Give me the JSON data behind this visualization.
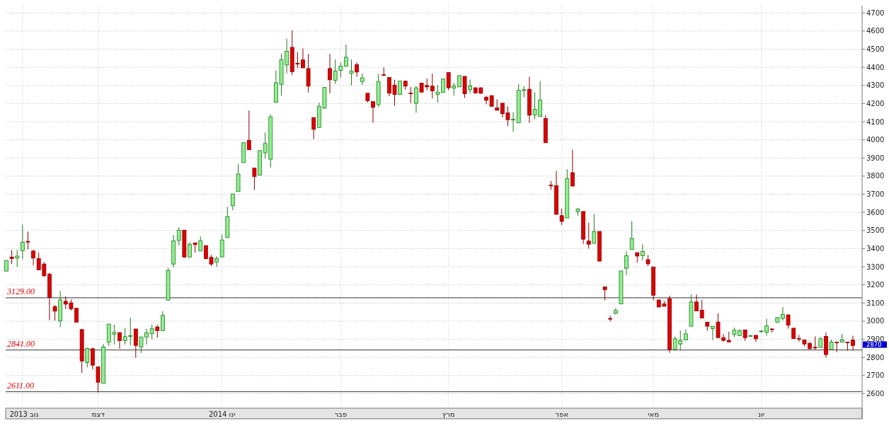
{
  "chart_data": {
    "type": "candlestick",
    "categories": [
      null,
      null,
      null,
      "נוב 2013",
      null,
      null,
      null,
      null,
      null,
      null,
      null,
      null,
      null,
      null,
      null,
      null,
      null,
      "דצמ",
      null,
      null,
      null,
      null,
      null,
      null,
      null,
      null,
      null,
      null,
      null,
      null,
      null,
      null,
      null,
      null,
      null,
      null,
      null,
      null,
      null,
      null,
      "ינו 2014",
      null,
      null,
      null,
      null,
      null,
      null,
      null,
      null,
      null,
      null,
      null,
      null,
      null,
      null,
      null,
      null,
      null,
      null,
      null,
      null,
      null,
      "פבר",
      null,
      null,
      null,
      null,
      null,
      null,
      null,
      null,
      null,
      null,
      null,
      null,
      null,
      null,
      null,
      null,
      null,
      null,
      null,
      "מרץ",
      null,
      null,
      null,
      null,
      null,
      null,
      null,
      null,
      null,
      null,
      null,
      null,
      null,
      null,
      null,
      null,
      null,
      null,
      null,
      null,
      "אפר",
      null,
      null,
      null,
      null,
      null,
      null,
      null,
      null,
      null,
      null,
      null,
      null,
      null,
      null,
      null,
      null,
      "מאי",
      null,
      null,
      null,
      null,
      null,
      null,
      null,
      null,
      null,
      null,
      null,
      null,
      null,
      null,
      null,
      null,
      null,
      null,
      null,
      "יונ",
      null,
      null,
      null,
      null,
      null,
      null,
      null,
      null,
      null,
      null,
      null,
      null,
      null,
      null,
      null,
      null,
      null
    ],
    "ohlc": [
      [
        3276,
        3335,
        3276,
        3335
      ],
      [
        3354,
        3393,
        3315,
        3345
      ],
      [
        3348,
        3393,
        3300,
        3359
      ],
      [
        3389,
        3533,
        3341,
        3436
      ],
      [
        3440,
        3494,
        3396,
        3436
      ],
      [
        3387,
        3393,
        3309,
        3348
      ],
      [
        3345,
        3378,
        3283,
        3283
      ],
      [
        3315,
        3326,
        3244,
        3250
      ],
      [
        3259,
        3266,
        3006,
        3131
      ],
      [
        3081,
        3088,
        3003,
        3055
      ],
      [
        3001,
        3166,
        2967,
        3118
      ],
      [
        3110,
        3137,
        3066,
        3094
      ],
      [
        3101,
        3120,
        3058,
        3068
      ],
      [
        3071,
        3071,
        2994,
        2994
      ],
      [
        2954,
        2954,
        2714,
        2780
      ],
      [
        2772,
        2854,
        2746,
        2850
      ],
      [
        2848,
        2854,
        2733,
        2757
      ],
      [
        2748,
        2748,
        2607,
        2663
      ],
      [
        2657,
        2874,
        2657,
        2858
      ],
      [
        2884,
        2984,
        2863,
        2984
      ],
      [
        2928,
        2981,
        2871,
        2938
      ],
      [
        2937,
        2937,
        2848,
        2893
      ],
      [
        2893,
        2962,
        2871,
        2915
      ],
      [
        2915,
        3019,
        2867,
        2920
      ],
      [
        2957,
        2957,
        2798,
        2866
      ],
      [
        2858,
        2913,
        2824,
        2913
      ],
      [
        2913,
        2958,
        2871,
        2936
      ],
      [
        2932,
        2980,
        2900,
        2958
      ],
      [
        2968,
        2980,
        2909,
        2948
      ],
      [
        2948,
        3055,
        2948,
        3032
      ],
      [
        3116,
        3293,
        3116,
        3280
      ],
      [
        3315,
        3475,
        3296,
        3443
      ],
      [
        3445,
        3517,
        3417,
        3502
      ],
      [
        3502,
        3502,
        3348,
        3354
      ],
      [
        3354,
        3435,
        3354,
        3424
      ],
      [
        3432,
        3432,
        3378,
        3422
      ],
      [
        3387,
        3467,
        3387,
        3444
      ],
      [
        3417,
        3417,
        3339,
        3345
      ],
      [
        3352,
        3365,
        3305,
        3315
      ],
      [
        3326,
        3358,
        3300,
        3346
      ],
      [
        3354,
        3478,
        3354,
        3448
      ],
      [
        3461,
        3630,
        3461,
        3577
      ],
      [
        3637,
        3702,
        3611,
        3702
      ],
      [
        3715,
        3867,
        3715,
        3811
      ],
      [
        3874,
        3984,
        3874,
        3984
      ],
      [
        3997,
        4162,
        3945,
        3945
      ],
      [
        3845,
        3845,
        3724,
        3798
      ],
      [
        3805,
        3941,
        3805,
        3941
      ],
      [
        3929,
        4040,
        3897,
        3980
      ],
      [
        3893,
        4140,
        3848,
        4127
      ],
      [
        4207,
        4383,
        4207,
        4315
      ],
      [
        4306,
        4474,
        4244,
        4443
      ],
      [
        4413,
        4558,
        4367,
        4488
      ],
      [
        4510,
        4604,
        4357,
        4376
      ],
      [
        4422,
        4484,
        4396,
        4418
      ],
      [
        4441,
        4504,
        4397,
        4397
      ],
      [
        4393,
        4474,
        4261,
        4296
      ],
      [
        4123,
        4123,
        4004,
        4058
      ],
      [
        4068,
        4205,
        4068,
        4185
      ],
      [
        4175,
        4289,
        4170,
        4289
      ],
      [
        4393,
        4474,
        4257,
        4331
      ],
      [
        4328,
        4443,
        4309,
        4380
      ],
      [
        4383,
        4426,
        4344,
        4406
      ],
      [
        4406,
        4526,
        4406,
        4456
      ],
      [
        4367,
        4443,
        4300,
        4380
      ],
      [
        4415,
        4428,
        4348,
        4374
      ],
      [
        4322,
        4367,
        4302,
        4342
      ],
      [
        4257,
        4257,
        4207,
        4215
      ],
      [
        4211,
        4211,
        4094,
        4179
      ],
      [
        4194,
        4363,
        4181,
        4322
      ],
      [
        4360,
        4400,
        4352,
        4356
      ],
      [
        4344,
        4344,
        4241,
        4257
      ],
      [
        4302,
        4331,
        4188,
        4250
      ],
      [
        4250,
        4324,
        4250,
        4324
      ],
      [
        4324,
        4324,
        4276,
        4296
      ],
      [
        4258,
        4292,
        4202,
        4255
      ],
      [
        4202,
        4296,
        4149,
        4287
      ],
      [
        4313,
        4313,
        4263,
        4263
      ],
      [
        4300,
        4337,
        4272,
        4292
      ],
      [
        4296,
        4365,
        4228,
        4270
      ],
      [
        4250,
        4302,
        4205,
        4263
      ],
      [
        4261,
        4337,
        4261,
        4337
      ],
      [
        4371,
        4371,
        4274,
        4287
      ],
      [
        4285,
        4315,
        4244,
        4298
      ],
      [
        4292,
        4354,
        4292,
        4354
      ],
      [
        4350,
        4350,
        4231,
        4254
      ],
      [
        4276,
        4332,
        4257,
        4298
      ],
      [
        4287,
        4290,
        4254,
        4259
      ],
      [
        4287,
        4290,
        4254,
        4257
      ],
      [
        4235,
        4244,
        4196,
        4218
      ],
      [
        4244,
        4244,
        4185,
        4185
      ],
      [
        4176,
        4224,
        4163,
        4163
      ],
      [
        4202,
        4202,
        4123,
        4144
      ],
      [
        4149,
        4185,
        4075,
        4111
      ],
      [
        4111,
        4153,
        4045,
        4113
      ],
      [
        4094,
        4306,
        4094,
        4274
      ],
      [
        4274,
        4296,
        4235,
        4276
      ],
      [
        4279,
        4348,
        4094,
        4136
      ],
      [
        4137,
        4263,
        4114,
        4168
      ],
      [
        4129,
        4322,
        4129,
        4220
      ],
      [
        4118,
        4137,
        3984,
        3984
      ],
      [
        3750,
        3773,
        3725,
        3747
      ],
      [
        3747,
        3829,
        3589,
        3589
      ],
      [
        3582,
        3621,
        3530,
        3550
      ],
      [
        3569,
        3838,
        3569,
        3786
      ],
      [
        3819,
        3946,
        3745,
        3745
      ],
      [
        3604,
        3625,
        3582,
        3618
      ],
      [
        3605,
        3605,
        3426,
        3452
      ],
      [
        3442,
        3543,
        3400,
        3424
      ],
      [
        3429,
        3591,
        3429,
        3495
      ],
      [
        3495,
        3495,
        3331,
        3331
      ],
      [
        3189,
        3189,
        3115,
        3173
      ],
      [
        3015,
        3030,
        2998,
        3013
      ],
      [
        3043,
        3072,
        3037,
        3059
      ],
      [
        3095,
        3277,
        3095,
        3277
      ],
      [
        3292,
        3387,
        3253,
        3361
      ],
      [
        3396,
        3552,
        3396,
        3456
      ],
      [
        3378,
        3378,
        3322,
        3359
      ],
      [
        3361,
        3424,
        3335,
        3385
      ],
      [
        3339,
        3365,
        3305,
        3316
      ],
      [
        3299,
        3299,
        3115,
        3143
      ],
      [
        3117,
        3117,
        3078,
        3078
      ],
      [
        3095,
        3111,
        3082,
        3082
      ],
      [
        3124,
        3141,
        2825,
        2844
      ],
      [
        2844,
        2916,
        2838,
        2903
      ],
      [
        2874,
        2950,
        2838,
        2894
      ],
      [
        2896,
        2955,
        2896,
        2930
      ],
      [
        2972,
        3147,
        2972,
        3106
      ],
      [
        3106,
        3147,
        3056,
        3056
      ],
      [
        3060,
        3117,
        3017,
        3017
      ],
      [
        2994,
        2994,
        2946,
        2972
      ],
      [
        2959,
        2972,
        2896,
        2972
      ],
      [
        2995,
        3043,
        2909,
        2909
      ],
      [
        2909,
        2929,
        2887,
        2894
      ],
      [
        2894,
        2942,
        2885,
        2885
      ],
      [
        2926,
        2965,
        2913,
        2950
      ],
      [
        2920,
        2955,
        2920,
        2948
      ],
      [
        2952,
        2952,
        2891,
        2909
      ],
      [
        2918,
        2925,
        2914,
        2920
      ],
      [
        2922,
        2922,
        2885,
        2903
      ],
      [
        2944,
        2950,
        2936,
        2946
      ],
      [
        2939,
        3013,
        2920,
        2974
      ],
      [
        2957,
        2962,
        2937,
        2954
      ],
      [
        2994,
        3020,
        2994,
        3020
      ],
      [
        3015,
        3078,
        3004,
        3037
      ],
      [
        3034,
        3040,
        2959,
        2978
      ],
      [
        2961,
        2965,
        2900,
        2904
      ],
      [
        2904,
        2924,
        2887,
        2902
      ],
      [
        2896,
        2896,
        2861,
        2874
      ],
      [
        2877,
        2887,
        2846,
        2848
      ],
      [
        2856,
        2916,
        2842,
        2855
      ],
      [
        2855,
        2913,
        2855,
        2903
      ],
      [
        2916,
        2937,
        2799,
        2816
      ],
      [
        2844,
        2898,
        2844,
        2885
      ],
      [
        2884,
        2884,
        2829,
        2883
      ],
      [
        2884,
        2930,
        2884,
        2896
      ],
      [
        2884,
        2884,
        2838,
        2883
      ],
      [
        2896,
        2920,
        2839,
        2865
      ]
    ],
    "ylim": [
      2520,
      4740
    ],
    "yticks": [
      2600,
      2700,
      2800,
      2900,
      3000,
      3100,
      3200,
      3300,
      3400,
      3500,
      3600,
      3700,
      3800,
      3900,
      4000,
      4100,
      4200,
      4300,
      4400,
      4500,
      4600,
      4700
    ],
    "grid": true,
    "ref_lines": [
      {
        "axis": "y",
        "value": 3129,
        "label": "3129.00",
        "color": "#333333"
      },
      {
        "axis": "y",
        "value": 2841,
        "label": "2841.00",
        "color": "#333333"
      },
      {
        "axis": "y",
        "value": 2611,
        "label": "2611.00",
        "color": "#333333"
      }
    ],
    "annotations": [
      "2870"
    ]
  }
}
